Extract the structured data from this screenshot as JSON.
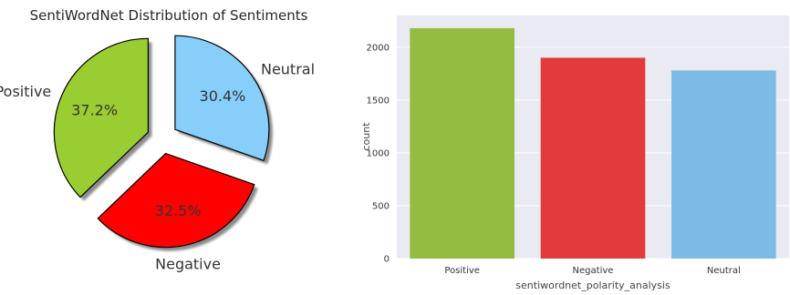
{
  "chart_data": [
    {
      "type": "pie",
      "title": "SentiWordNet Distribution of Sentiments",
      "labels": [
        "Positive",
        "Negative",
        "Neutral"
      ],
      "values": [
        37.2,
        32.5,
        30.4
      ],
      "value_labels": [
        "37.2%",
        "32.5%",
        "30.4%"
      ],
      "colors": [
        "#9acd32",
        "#ff0000",
        "#87cefa"
      ],
      "start_angle_deg": 90,
      "explode": true,
      "shadow": true,
      "edge_color": "#000000"
    },
    {
      "type": "bar",
      "categories": [
        "Positive",
        "Negative",
        "Neutral"
      ],
      "values": [
        2180,
        1900,
        1780
      ],
      "colors": [
        "#93bc41",
        "#e33b3b",
        "#7cbbe6"
      ],
      "xlabel": "sentiwordnet_polarity_analysis",
      "ylabel": "count",
      "ylim": [
        0,
        2300
      ],
      "yticks": [
        0,
        500,
        1000,
        1500,
        2000
      ],
      "yticklabels": [
        "0",
        "500",
        "1000",
        "1500",
        "2000"
      ],
      "grid": true,
      "background": "#eaeaf2"
    }
  ]
}
